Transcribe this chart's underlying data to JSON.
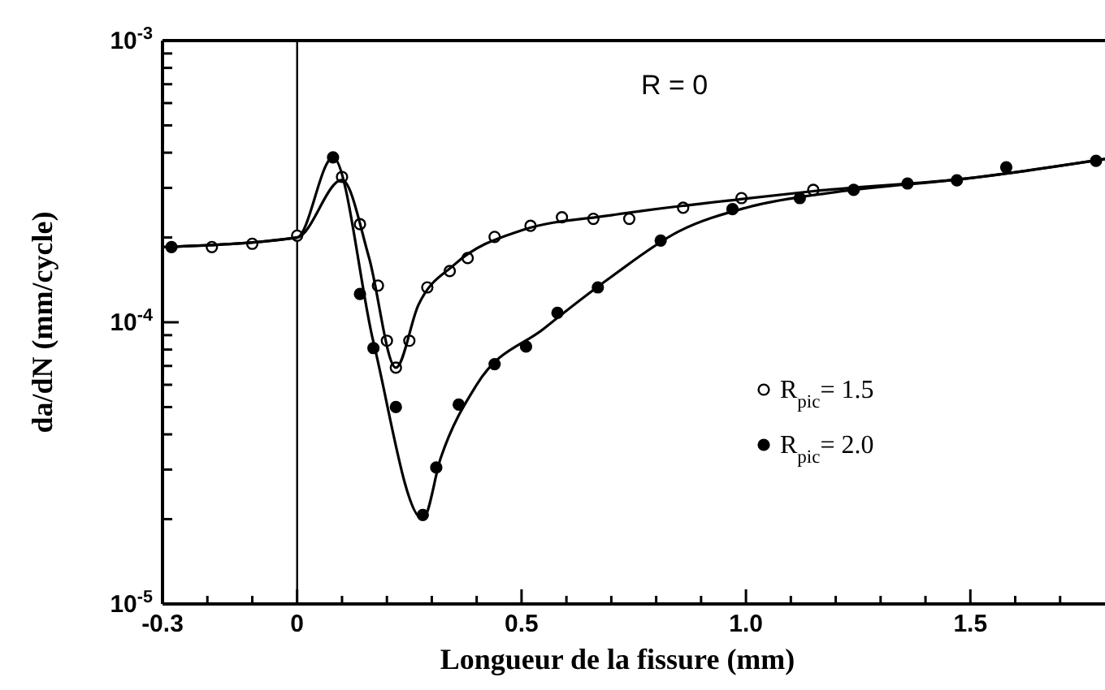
{
  "chart_data": {
    "type": "scatter",
    "xlabel": "Longueur de la fissure (mm)",
    "ylabel": "da/dN (mm/cycle)",
    "annotations": [
      "R = 0"
    ],
    "log": "y",
    "grid": false,
    "legend": "right",
    "marker": "circle",
    "line_style": "solid",
    "xlim": [
      -0.3,
      1.8
    ],
    "xticks": [
      -0.3,
      {
        "value": -0.2,
        "label": null
      },
      {
        "value": -0.1,
        "label": null
      },
      0,
      {
        "value": 0.1,
        "label": null
      },
      {
        "value": 0.2,
        "label": null
      },
      {
        "value": 0.3,
        "label": null
      },
      {
        "value": 0.4,
        "label": null
      },
      0.5,
      {
        "value": 0.6,
        "label": null
      },
      {
        "value": 0.7,
        "label": null
      },
      {
        "value": 0.8,
        "label": null
      },
      {
        "value": 0.9,
        "label": null
      },
      {
        "value": 1,
        "label": "1.0"
      },
      {
        "value": 1.1,
        "label": null
      },
      {
        "value": 1.2,
        "label": null
      },
      {
        "value": 1.3,
        "label": null
      },
      {
        "value": 1.4,
        "label": null
      },
      1.5,
      {
        "value": 1.6,
        "label": null
      },
      {
        "value": 1.7,
        "label": null
      }
    ],
    "ylim": [
      1e-05,
      0.001
    ],
    "yticks": [
      {
        "value": 1e-05,
        "label": "10$^{-5}$"
      },
      {
        "value": 2e-05,
        "label": null
      },
      {
        "value": 3e-05,
        "label": null
      },
      {
        "value": 4e-05,
        "label": null
      },
      {
        "value": 5e-05,
        "label": null
      },
      {
        "value": 6e-05,
        "label": null
      },
      {
        "value": 7e-05,
        "label": null
      },
      {
        "value": 8e-05,
        "label": null
      },
      {
        "value": 9e-05,
        "label": null
      },
      {
        "value": 0.0001,
        "label": "10$^{-4}$"
      },
      {
        "value": 0.0002,
        "label": null
      },
      {
        "value": 0.0003,
        "label": null
      },
      {
        "value": 0.0004,
        "label": null
      },
      {
        "value": 0.0005,
        "label": null
      },
      {
        "value": 0.0006,
        "label": null
      },
      {
        "value": 0.0007,
        "label": null
      },
      {
        "value": 0.0008,
        "label": null
      },
      {
        "value": 0.0009,
        "label": null
      },
      {
        "value": 0.001,
        "label": "10$^{-3}$"
      }
    ],
    "ref_lines": [
      {
        "axis": "x",
        "value": 0
      }
    ],
    "series": [
      {
        "name": "R$_{pic}$= 1.5",
        "color": "#000000",
        "x": [
          -0.19,
          -0.1,
          0,
          0.1,
          0.14,
          0.18,
          0.2,
          0.22,
          0.25,
          0.29,
          0.34,
          0.38,
          0.44,
          0.52,
          0.59,
          0.66,
          0.74,
          0.86,
          0.99,
          1.15
        ],
        "values": [
          0.000185,
          0.00019,
          0.000203,
          0.000328,
          0.000223,
          0.000135,
          8.6e-05,
          6.9e-05,
          8.6e-05,
          0.000133,
          0.000152,
          0.000169,
          0.000201,
          0.00022,
          0.000236,
          0.000233,
          0.000233,
          0.000255,
          0.000276,
          0.000295
        ]
      },
      {
        "name": "R$_{pic}$= 2.0",
        "color": "#000000",
        "x": [
          -0.28,
          0.08,
          0.14,
          0.17,
          0.22,
          0.28,
          0.31,
          0.36,
          0.44,
          0.51,
          0.58,
          0.67,
          0.81,
          0.97,
          1.12,
          1.24,
          1.36,
          1.47,
          1.58,
          1.78
        ],
        "values": [
          0.000185,
          0.000385,
          0.000126,
          8.1e-05,
          5e-05,
          2.07e-05,
          3.05e-05,
          5.1e-05,
          7.1e-05,
          8.2e-05,
          0.000108,
          0.000133,
          0.000195,
          0.000252,
          0.000276,
          0.000295,
          0.000311,
          0.000319,
          0.000355,
          0.000374
        ]
      },
      {
        "type": "line",
        "marker": "none",
        "color": "#000000",
        "x": [
          -0.3,
          0,
          0.1,
          0.16,
          0.22,
          0.27,
          0.35,
          0.5,
          0.7,
          1,
          1.15,
          1.5,
          1.8
        ],
        "values": [
          0.000185,
          0.0002,
          0.00032,
          0.00017,
          6.9e-05,
          0.000115,
          0.00016,
          0.000212,
          0.00024,
          0.000275,
          0.000292,
          0.000325,
          0.00038
        ]
      },
      {
        "type": "line",
        "marker": "none",
        "color": "#000000",
        "x": [
          -0.3,
          0,
          0.08,
          0.17,
          0.28,
          0.32,
          0.4,
          0.55,
          0.7,
          0.85,
          1,
          1.2,
          1.5,
          1.8
        ],
        "values": [
          0.000185,
          0.0002,
          0.000385,
          8.5e-05,
          2e-05,
          3.3e-05,
          6e-05,
          9.5e-05,
          0.000145,
          0.00021,
          0.000255,
          0.00029,
          0.000325,
          0.00038
        ]
      }
    ]
  }
}
